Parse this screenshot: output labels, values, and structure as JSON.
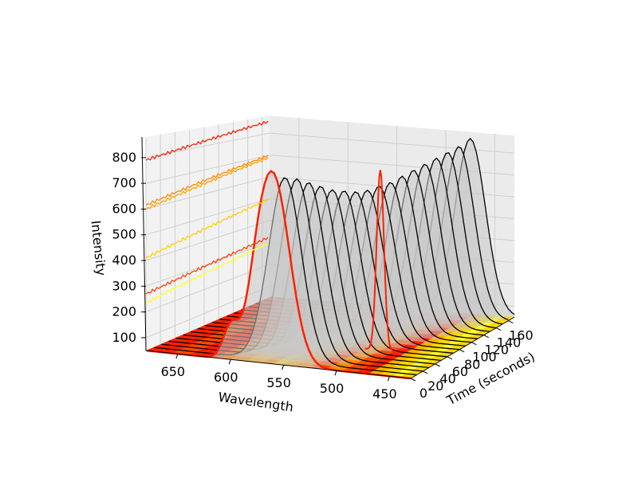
{
  "chart_data": {
    "type": "3d-line-waterfall",
    "title": "",
    "xlabel": "Wavelength",
    "ylabel": "Time (seconds)",
    "zlabel": "Intensity",
    "grid": true,
    "xlim": [
      430,
      680
    ],
    "ylim": [
      0,
      170
    ],
    "zlim": [
      50,
      880
    ],
    "x_ticks": [
      "650",
      "600",
      "550",
      "500",
      "450"
    ],
    "y_ticks": [
      "0",
      "20",
      "40",
      "60",
      "80",
      "100",
      "120",
      "140",
      "160"
    ],
    "z_ticks": [
      "100",
      "200",
      "300",
      "400",
      "500",
      "600",
      "700",
      "800"
    ],
    "series_wall_spectra": [
      {
        "time": 0,
        "baseline": 790,
        "end": 855,
        "color": "#ff2000"
      },
      {
        "time": 0,
        "baseline": 615,
        "end": 700,
        "color": "#ff8a00"
      },
      {
        "time": 0,
        "baseline": 600,
        "end": 690,
        "color": "#ffa500"
      },
      {
        "time": 0,
        "baseline": 410,
        "end": 500,
        "color": "#ffd000"
      },
      {
        "time": 0,
        "baseline": 270,
        "end": 325,
        "color": "#ff4000"
      },
      {
        "time": 0,
        "baseline": 235,
        "end": 300,
        "color": "#ffff33"
      }
    ],
    "series_waterfall": {
      "times": [
        0,
        10,
        20,
        30,
        40,
        50,
        60,
        70,
        80,
        90,
        100,
        110,
        120,
        130,
        140,
        150,
        160,
        170
      ],
      "peak_center_nm": [
        560,
        555,
        550,
        545,
        540,
        535,
        530,
        525,
        520,
        515,
        510,
        505,
        500,
        495,
        490,
        485,
        480,
        475
      ],
      "peak_height": [
        780,
        770,
        760,
        740,
        720,
        700,
        690,
        680,
        680,
        690,
        700,
        720,
        740,
        760,
        780,
        800,
        820,
        850
      ],
      "color": "#000000"
    },
    "contour_floor": {
      "levels_colors": [
        "#ff2000",
        "#ff4a00",
        "#ff8c00",
        "#ffb000",
        "#ffd800",
        "#ffff33"
      ]
    }
  }
}
